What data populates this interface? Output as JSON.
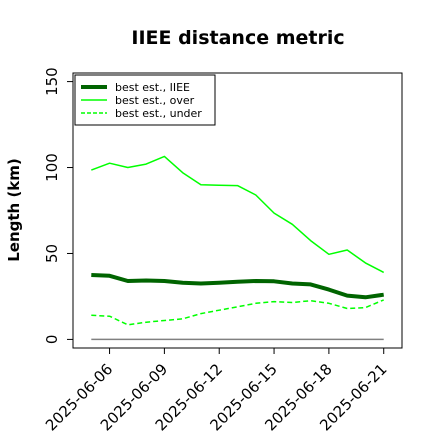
{
  "chart_data": {
    "type": "line",
    "title": "IIEE distance metric",
    "xlabel": "",
    "ylabel": "Length (km)",
    "x": [
      "2025-06-05",
      "2025-06-06",
      "2025-06-07",
      "2025-06-08",
      "2025-06-09",
      "2025-06-10",
      "2025-06-11",
      "2025-06-12",
      "2025-06-13",
      "2025-06-14",
      "2025-06-15",
      "2025-06-16",
      "2025-06-17",
      "2025-06-18",
      "2025-06-19",
      "2025-06-20",
      "2025-06-21"
    ],
    "xticks": [
      "2025-06-06",
      "2025-06-09",
      "2025-06-12",
      "2025-06-15",
      "2025-06-18",
      "2025-06-21"
    ],
    "yticks": [
      0,
      50,
      100,
      150
    ],
    "xlim": [
      "2025-06-04",
      "2025-06-22"
    ],
    "ylim": [
      -5,
      155
    ],
    "grid": false,
    "legend_position": "top-left",
    "series": [
      {
        "name": "best est., IIEE",
        "color": "#006400",
        "style": "solid",
        "width": 4,
        "values": [
          37.5,
          37,
          34,
          34.3,
          34,
          33,
          32.5,
          33,
          33.5,
          34,
          33.8,
          32.5,
          32,
          29,
          25.5,
          24.5,
          26
        ]
      },
      {
        "name": "best est., over",
        "color": "#00ff00",
        "style": "solid",
        "width": 1.5,
        "values": [
          98.5,
          102.5,
          100,
          102,
          106.5,
          97,
          90,
          89.7,
          89.5,
          84,
          73.5,
          67,
          57.5,
          49.5,
          52,
          44.5,
          39
        ]
      },
      {
        "name": "best est., under",
        "color": "#00ff00",
        "style": "dashed",
        "width": 1.5,
        "values": [
          14,
          13.5,
          8.5,
          10,
          11,
          12,
          15,
          17,
          19,
          21,
          22,
          21.5,
          22.5,
          21,
          18,
          18.5,
          23
        ]
      },
      {
        "name": "",
        "color": "#808080",
        "style": "solid",
        "width": 1.5,
        "values": [
          0,
          0,
          0,
          0,
          0,
          0,
          0,
          0,
          0,
          0,
          0,
          0,
          0,
          0,
          0,
          0,
          0
        ]
      }
    ]
  }
}
